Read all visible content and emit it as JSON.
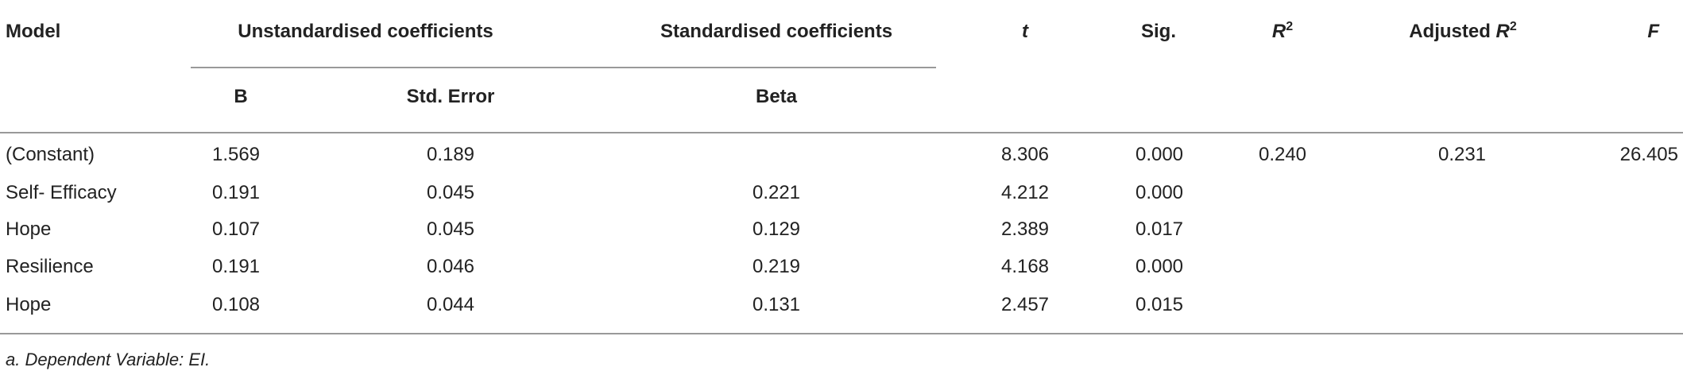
{
  "header": {
    "model": "Model",
    "unstd": "Unstandardised coefficients",
    "std": "Standardised coefficients",
    "t": "t",
    "sig": "Sig.",
    "r2": {
      "base": "R",
      "sup": "2"
    },
    "adj_r2": {
      "prefix": "Adjusted",
      "base": "R",
      "sup": "2"
    },
    "f": "F",
    "b": "B",
    "se": "Std. Error",
    "beta": "Beta"
  },
  "table": {
    "rows": [
      [
        "(Constant)",
        "1.569",
        "0.189",
        null,
        "8.306",
        "0.000",
        "0.240",
        "0.231",
        "26.405"
      ],
      [
        "Self- Efficacy",
        "0.191",
        "0.045",
        "0.221",
        "4.212",
        "0.000",
        null,
        null,
        null
      ],
      [
        "Hope",
        "0.107",
        "0.045",
        "0.129",
        "2.389",
        "0.017",
        null,
        null,
        null
      ],
      [
        "Resilience",
        "0.191",
        "0.046",
        "0.219",
        "4.168",
        "0.000",
        null,
        null,
        null
      ],
      [
        "Hope",
        "0.108",
        "0.044",
        "0.131",
        "2.457",
        "0.015",
        null,
        null,
        null
      ]
    ]
  },
  "footnote": "a. Dependent Variable: EI."
}
